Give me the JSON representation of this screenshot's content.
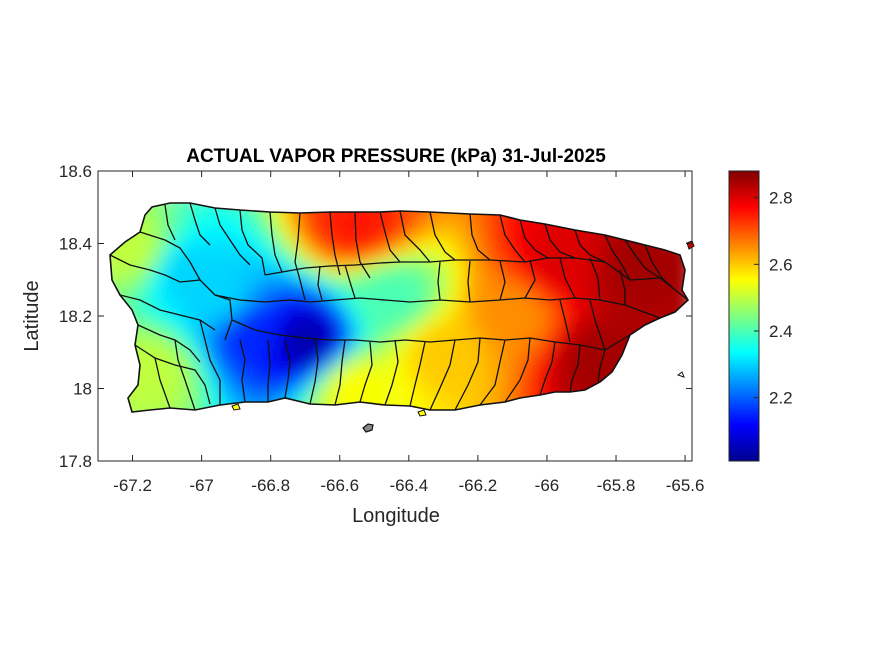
{
  "chart_data": {
    "type": "heatmap",
    "title": "ACTUAL VAPOR PRESSURE (kPa) 31-Jul-2025",
    "xlabel": "Longitude",
    "ylabel": "Latitude",
    "xlim": [
      -67.3,
      -65.58
    ],
    "ylim": [
      17.8,
      18.6
    ],
    "x_ticks": [
      -67.2,
      -67,
      -66.8,
      -66.6,
      -66.4,
      -66.2,
      -66,
      -65.8,
      -65.6
    ],
    "x_tick_labels": [
      "-67.2",
      "-67",
      "-66.8",
      "-66.6",
      "-66.4",
      "-66.2",
      "-66",
      "-65.8",
      "-65.6"
    ],
    "y_ticks": [
      17.8,
      18,
      18.2,
      18.4,
      18.6
    ],
    "y_tick_labels": [
      "17.8",
      "18",
      "18.2",
      "18.4",
      "18.6"
    ],
    "colorbar": {
      "colormap": "jet",
      "clim": [
        2.01,
        2.88
      ],
      "ticks": [
        2.2,
        2.4,
        2.6,
        2.8
      ],
      "tick_labels": [
        "2.2",
        "2.4",
        "2.6",
        "2.8"
      ]
    },
    "grid": false,
    "field_description_points": [
      {
        "lon": -67.05,
        "lat": 18.32,
        "value": 2.3
      },
      {
        "lon": -66.7,
        "lat": 18.13,
        "value": 2.05
      },
      {
        "lon": -66.85,
        "lat": 18.15,
        "value": 2.15
      },
      {
        "lon": -66.95,
        "lat": 18.25,
        "value": 2.3
      },
      {
        "lon": -66.45,
        "lat": 18.25,
        "value": 2.4
      },
      {
        "lon": -67.15,
        "lat": 18.05,
        "value": 2.5
      },
      {
        "lon": -66.55,
        "lat": 18.0,
        "value": 2.55
      },
      {
        "lon": -66.3,
        "lat": 18.1,
        "value": 2.6
      },
      {
        "lon": -66.1,
        "lat": 18.2,
        "value": 2.65
      },
      {
        "lon": -65.95,
        "lat": 18.35,
        "value": 2.8
      },
      {
        "lon": -65.75,
        "lat": 18.33,
        "value": 2.85
      },
      {
        "lon": -65.85,
        "lat": 18.08,
        "value": 2.85
      },
      {
        "lon": -66.55,
        "lat": 18.45,
        "value": 2.75
      },
      {
        "lon": -67.2,
        "lat": 18.38,
        "value": 2.5
      }
    ]
  }
}
